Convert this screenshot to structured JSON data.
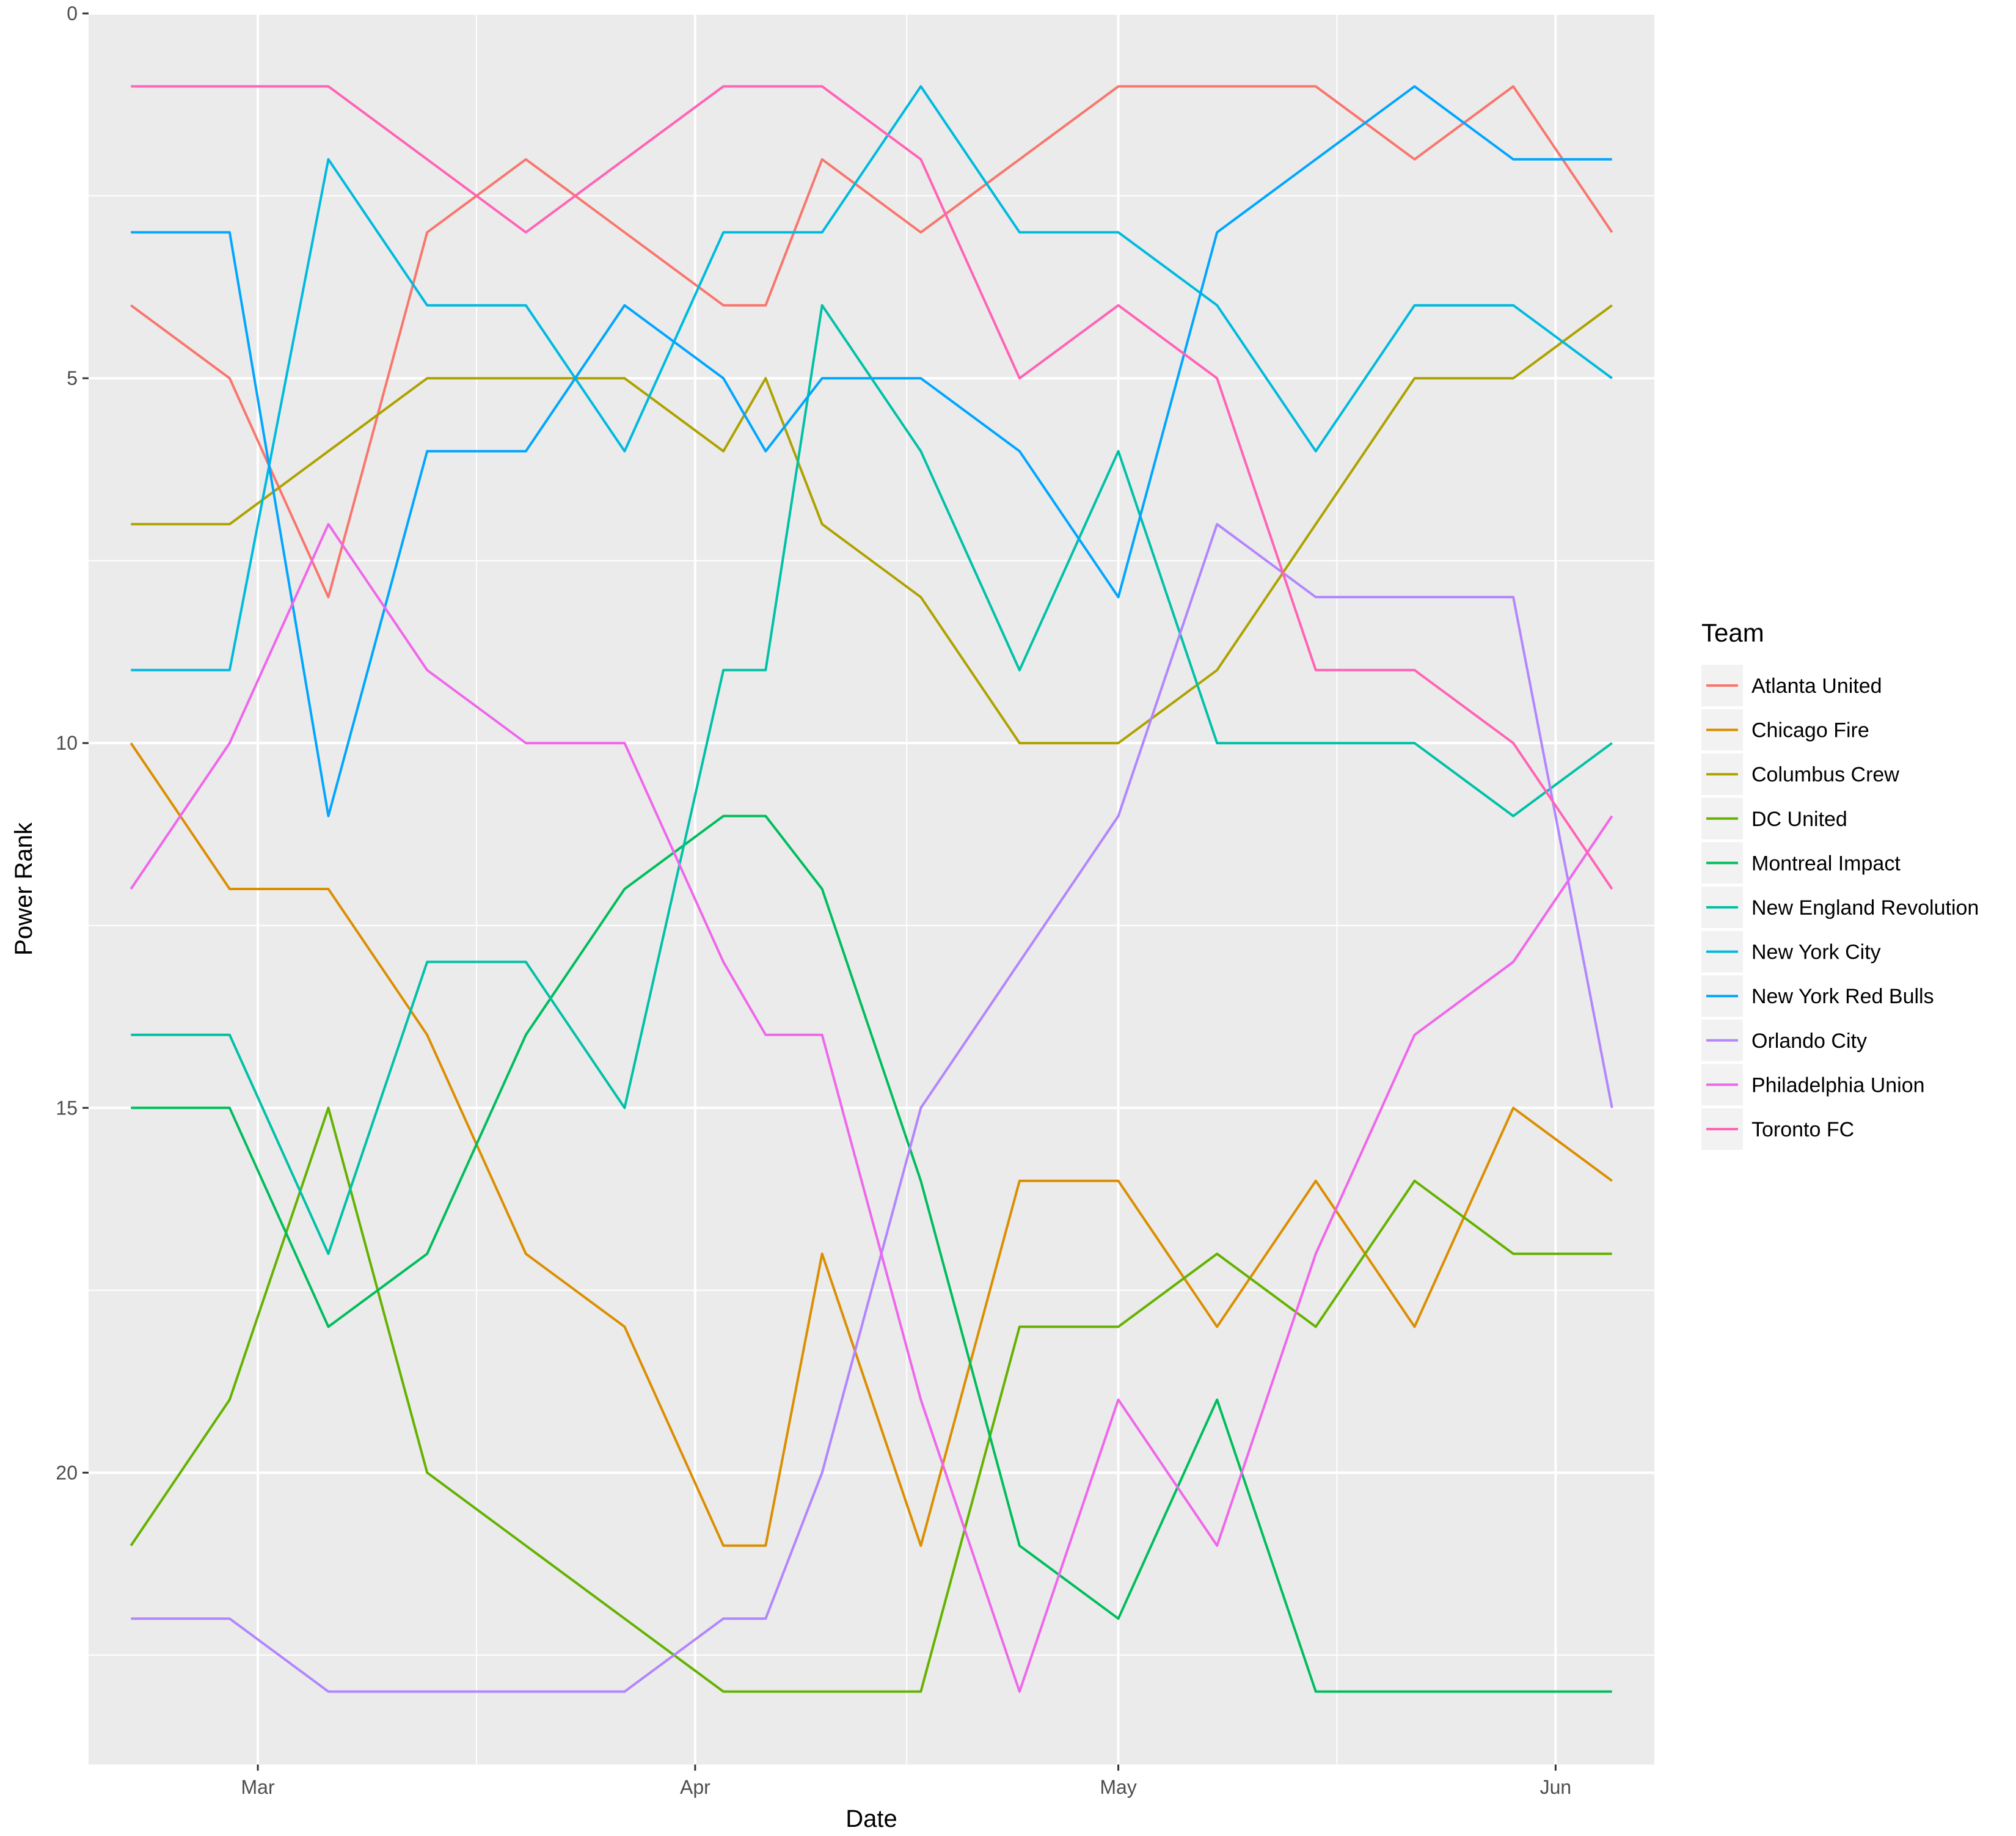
{
  "chart_data": {
    "type": "line",
    "title": "",
    "xlabel": "Date",
    "ylabel": "Power Rank",
    "x_axis": {
      "type": "date",
      "range": [
        "2017-02-17",
        "2017-06-08"
      ],
      "ticks": [
        {
          "date": "2017-03-01",
          "label": "Mar"
        },
        {
          "date": "2017-04-01",
          "label": "Apr"
        },
        {
          "date": "2017-05-01",
          "label": "May"
        },
        {
          "date": "2017-06-01",
          "label": "Jun"
        }
      ]
    },
    "y_axis": {
      "reversed": true,
      "range": [
        0,
        24
      ],
      "ticks": [
        0,
        5,
        10,
        15,
        20
      ]
    },
    "grid": true,
    "panel_background": "#ebebeb",
    "legend": {
      "title": "Team",
      "position": "right"
    },
    "x": [
      "2017-02-20",
      "2017-02-27",
      "2017-03-06",
      "2017-03-13",
      "2017-03-20",
      "2017-03-27",
      "2017-04-03",
      "2017-04-06",
      "2017-04-10",
      "2017-04-17",
      "2017-04-24",
      "2017-05-01",
      "2017-05-08",
      "2017-05-15",
      "2017-05-22",
      "2017-05-29",
      "2017-06-05"
    ],
    "series": [
      {
        "name": "Atlanta United",
        "color": "#F8766D",
        "values": [
          4,
          5,
          8,
          3,
          2,
          3,
          4,
          4,
          2,
          3,
          2,
          1,
          1,
          1,
          2,
          1,
          3
        ]
      },
      {
        "name": "Chicago Fire",
        "color": "#DB8E00",
        "values": [
          10,
          12,
          12,
          14,
          17,
          18,
          21,
          21,
          17,
          21,
          16,
          16,
          18,
          16,
          18,
          15,
          16
        ]
      },
      {
        "name": "Columbus Crew",
        "color": "#AEA200",
        "values": [
          7,
          7,
          6,
          5,
          5,
          5,
          6,
          5,
          7,
          8,
          10,
          10,
          9,
          7,
          5,
          5,
          4
        ]
      },
      {
        "name": "DC United",
        "color": "#64B200",
        "values": [
          21,
          19,
          15,
          20,
          21,
          22,
          23,
          23,
          23,
          23,
          18,
          18,
          17,
          18,
          16,
          17,
          17
        ]
      },
      {
        "name": "Montreal Impact",
        "color": "#00BD5C",
        "values": [
          15,
          15,
          18,
          17,
          14,
          12,
          11,
          11,
          12,
          16,
          21,
          22,
          19,
          23,
          23,
          23,
          23
        ]
      },
      {
        "name": "New England Revolution",
        "color": "#00C1A7",
        "values": [
          14,
          14,
          17,
          13,
          13,
          15,
          9,
          9,
          4,
          6,
          9,
          6,
          10,
          10,
          10,
          11,
          10
        ]
      },
      {
        "name": "New York City",
        "color": "#00BADE",
        "values": [
          9,
          9,
          2,
          4,
          4,
          6,
          3,
          3,
          3,
          1,
          3,
          3,
          4,
          6,
          4,
          4,
          5
        ]
      },
      {
        "name": "New York Red Bulls",
        "color": "#00A6FF",
        "values": [
          3,
          3,
          11,
          6,
          6,
          4,
          5,
          6,
          5,
          5,
          6,
          8,
          3,
          2,
          1,
          2,
          2
        ]
      },
      {
        "name": "Orlando City",
        "color": "#B385FF",
        "values": [
          22,
          22,
          23,
          23,
          23,
          23,
          22,
          22,
          20,
          15,
          13,
          11,
          7,
          8,
          8,
          8,
          15
        ]
      },
      {
        "name": "Philadelphia Union",
        "color": "#EF67EB",
        "values": [
          12,
          10,
          7,
          9,
          10,
          10,
          13,
          14,
          14,
          19,
          23,
          19,
          21,
          17,
          14,
          13,
          11
        ]
      },
      {
        "name": "Toronto FC",
        "color": "#FF63B6",
        "values": [
          1,
          1,
          1,
          2,
          3,
          2,
          1,
          1,
          1,
          2,
          5,
          4,
          5,
          9,
          9,
          10,
          12
        ]
      }
    ]
  }
}
